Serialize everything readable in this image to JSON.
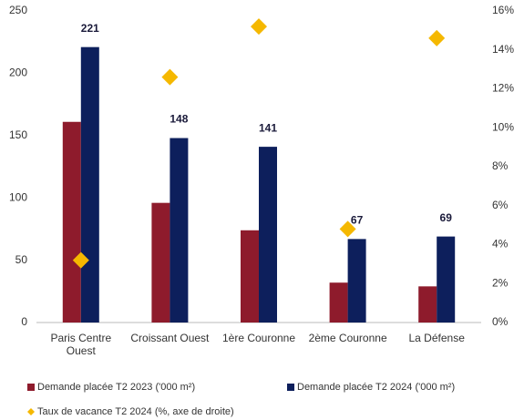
{
  "chart_data": {
    "type": "bar",
    "categories": [
      "Paris Centre Ouest",
      "Croissant Ouest",
      "1ère Couronne",
      "2ème Couronne",
      "La Défense"
    ],
    "series": [
      {
        "name": "Demande placée T2 2023 ('000 m²)",
        "color": "#8e1b2c",
        "values": [
          161,
          96,
          74,
          32,
          29
        ]
      },
      {
        "name": "Demande placée T2 2024 ('000 m²)",
        "color": "#0d1f5c",
        "values": [
          221,
          148,
          141,
          67,
          69
        ],
        "show_labels": true
      },
      {
        "name": "Taux de vacance T2 2024 (%, axe de droite)",
        "color": "#f5b800",
        "type": "scatter",
        "axis": "y2",
        "values": [
          3.2,
          12.6,
          15.2,
          4.8,
          14.6
        ]
      }
    ],
    "ylim": [
      0,
      250
    ],
    "yticks": [
      0,
      50,
      100,
      150,
      200,
      250
    ],
    "y2lim": [
      0,
      16
    ],
    "y2ticks": [
      {
        "value": 0,
        "label": "0%"
      },
      {
        "value": 2,
        "label": "2%"
      },
      {
        "value": 4,
        "label": "4%"
      },
      {
        "value": 6,
        "label": "6%"
      },
      {
        "value": 8,
        "label": "8%"
      },
      {
        "value": 10,
        "label": "10%"
      },
      {
        "value": 12,
        "label": "12%"
      },
      {
        "value": 14,
        "label": "14%"
      },
      {
        "value": 16,
        "label": "16%"
      }
    ],
    "legend": "bottom",
    "grid": false
  }
}
